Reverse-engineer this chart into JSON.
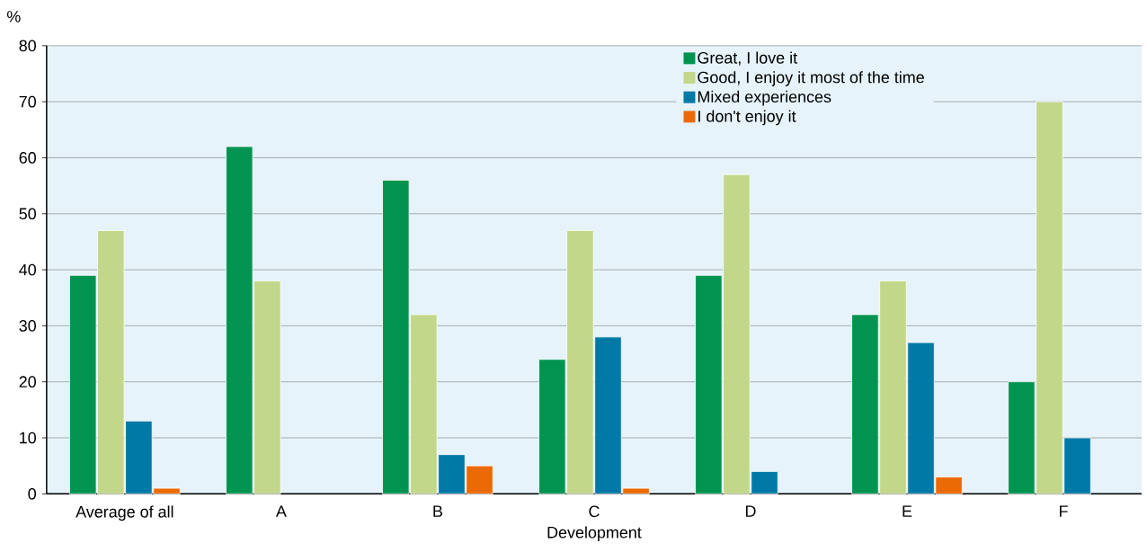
{
  "chart_data": {
    "type": "bar",
    "xlabel": "Development",
    "ylabel": "%",
    "categories": [
      "Average of all",
      "A",
      "B",
      "C",
      "D",
      "E",
      "F"
    ],
    "series": [
      {
        "name": "Great, I love it",
        "color": "#009450",
        "values": [
          39,
          62,
          56,
          24,
          39,
          32,
          20
        ]
      },
      {
        "name": "Good, I enjoy it most of the time",
        "color": "#c2d789",
        "values": [
          47,
          38,
          32,
          47,
          57,
          38,
          70
        ]
      },
      {
        "name": "Mixed experiences",
        "color": "#0079a6",
        "values": [
          13,
          null,
          7,
          28,
          4,
          27,
          10
        ]
      },
      {
        "name": "I don't enjoy it",
        "color": "#ec6a06",
        "values": [
          1,
          null,
          5,
          1,
          null,
          3,
          null
        ]
      }
    ],
    "ylim": [
      0,
      80
    ],
    "yticks": [
      0,
      10,
      20,
      30,
      40,
      50,
      60,
      70,
      80
    ],
    "grid": "y",
    "legend": "top right"
  }
}
